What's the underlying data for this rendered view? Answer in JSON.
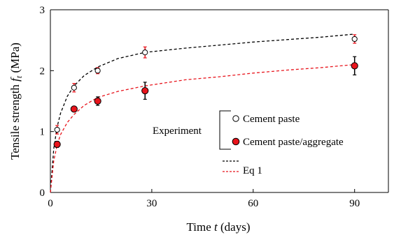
{
  "chart_data": {
    "type": "scatter",
    "xlabel_parts": {
      "pre": "Time ",
      "var": "t",
      "post": " (days)"
    },
    "ylabel_parts": {
      "pre": "Tensile strength ",
      "var": "f",
      "sub": "t",
      "post": " (MPa)"
    },
    "xlim": [
      0,
      100
    ],
    "ylim": [
      0,
      3
    ],
    "xticks": [
      0,
      30,
      60,
      90
    ],
    "yticks": [
      0,
      1,
      2,
      3
    ],
    "grid": false,
    "legend": {
      "group_label": "Experiment",
      "cement_paste": "Cement paste",
      "cement_paste_aggregate": "Cement paste/aggregate",
      "eq_label": "Eq 1",
      "placement": "lower-right"
    },
    "series": [
      {
        "name": "Cement paste",
        "marker": "open-circle",
        "points": [
          {
            "x": 2,
            "y": 1.03,
            "err": 0.07
          },
          {
            "x": 7,
            "y": 1.72,
            "err": 0.07
          },
          {
            "x": 14,
            "y": 2.0,
            "err": 0.05
          },
          {
            "x": 28,
            "y": 2.3,
            "err": 0.09
          },
          {
            "x": 90,
            "y": 2.52,
            "err": 0.07
          }
        ]
      },
      {
        "name": "Cement paste/aggregate",
        "marker": "filled-circle",
        "points": [
          {
            "x": 2,
            "y": 0.79,
            "err": 0.05
          },
          {
            "x": 7,
            "y": 1.37,
            "err": 0.04
          },
          {
            "x": 14,
            "y": 1.5,
            "err": 0.07
          },
          {
            "x": 28,
            "y": 1.67,
            "err": 0.14
          },
          {
            "x": 90,
            "y": 2.08,
            "err": 0.15
          }
        ]
      }
    ],
    "fits": [
      {
        "name": "Eq 1",
        "series": "Cement paste",
        "points": [
          [
            0,
            0
          ],
          [
            1,
            0.72
          ],
          [
            2,
            1.08
          ],
          [
            3,
            1.3
          ],
          [
            5,
            1.58
          ],
          [
            7,
            1.75
          ],
          [
            10,
            1.92
          ],
          [
            14,
            2.06
          ],
          [
            20,
            2.2
          ],
          [
            28,
            2.3
          ],
          [
            40,
            2.37
          ],
          [
            50,
            2.42
          ],
          [
            60,
            2.47
          ],
          [
            70,
            2.51
          ],
          [
            80,
            2.55
          ],
          [
            90,
            2.6
          ]
        ]
      },
      {
        "name": "Eq 1",
        "series": "Cement paste/aggregate",
        "points": [
          [
            0,
            0
          ],
          [
            1,
            0.52
          ],
          [
            2,
            0.78
          ],
          [
            3,
            0.95
          ],
          [
            5,
            1.15
          ],
          [
            7,
            1.28
          ],
          [
            10,
            1.43
          ],
          [
            14,
            1.56
          ],
          [
            20,
            1.66
          ],
          [
            28,
            1.75
          ],
          [
            40,
            1.85
          ],
          [
            50,
            1.9
          ],
          [
            60,
            1.96
          ],
          [
            70,
            2.01
          ],
          [
            80,
            2.05
          ],
          [
            90,
            2.1
          ]
        ]
      }
    ],
    "colors": {
      "paste": "#000000",
      "aggregate": "#e8141c",
      "paste_errorbar": "#e8141c",
      "aggregate_errorbar": "#000000"
    }
  }
}
